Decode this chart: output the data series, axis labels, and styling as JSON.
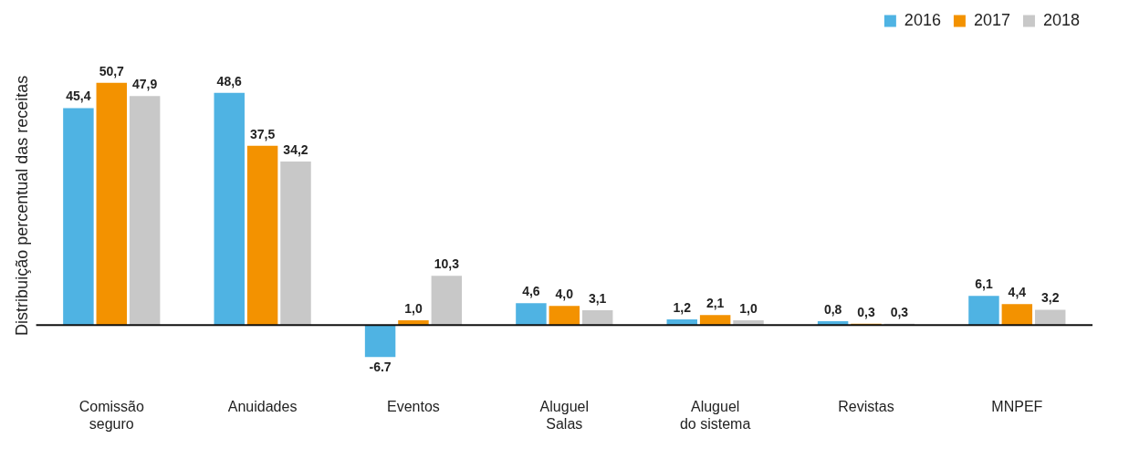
{
  "chart_data": {
    "type": "bar",
    "ylabel": "Distribuição percentual das receitas",
    "categories": [
      "Comissão seguro",
      "Anuidades",
      "Eventos",
      "Aluguel Salas",
      "Aluguel do sistema",
      "Revistas",
      "MNPEF"
    ],
    "series": [
      {
        "name": "2016",
        "color": "#4fb3e3",
        "values": [
          45.4,
          48.6,
          -6.7,
          4.6,
          1.2,
          0.8,
          6.1
        ],
        "value_labels": [
          "45,4",
          "48,6",
          "-6.7",
          "4,6",
          "1,2",
          "0,8",
          "6,1"
        ]
      },
      {
        "name": "2017",
        "color": "#f39200",
        "values": [
          50.7,
          37.5,
          1.0,
          4.0,
          2.1,
          0.3,
          4.4
        ],
        "value_labels": [
          "50,7",
          "37,5",
          "1,0",
          "4,0",
          "2,1",
          "0,3",
          "4,4"
        ]
      },
      {
        "name": "2018",
        "color": "#c8c8c8",
        "values": [
          47.9,
          34.2,
          10.3,
          3.1,
          1.0,
          0.3,
          3.2
        ],
        "value_labels": [
          "47,9",
          "34,2",
          "10,3",
          "3,1",
          "1,0",
          "0,3",
          "3,2"
        ]
      }
    ],
    "legend": "top right"
  }
}
